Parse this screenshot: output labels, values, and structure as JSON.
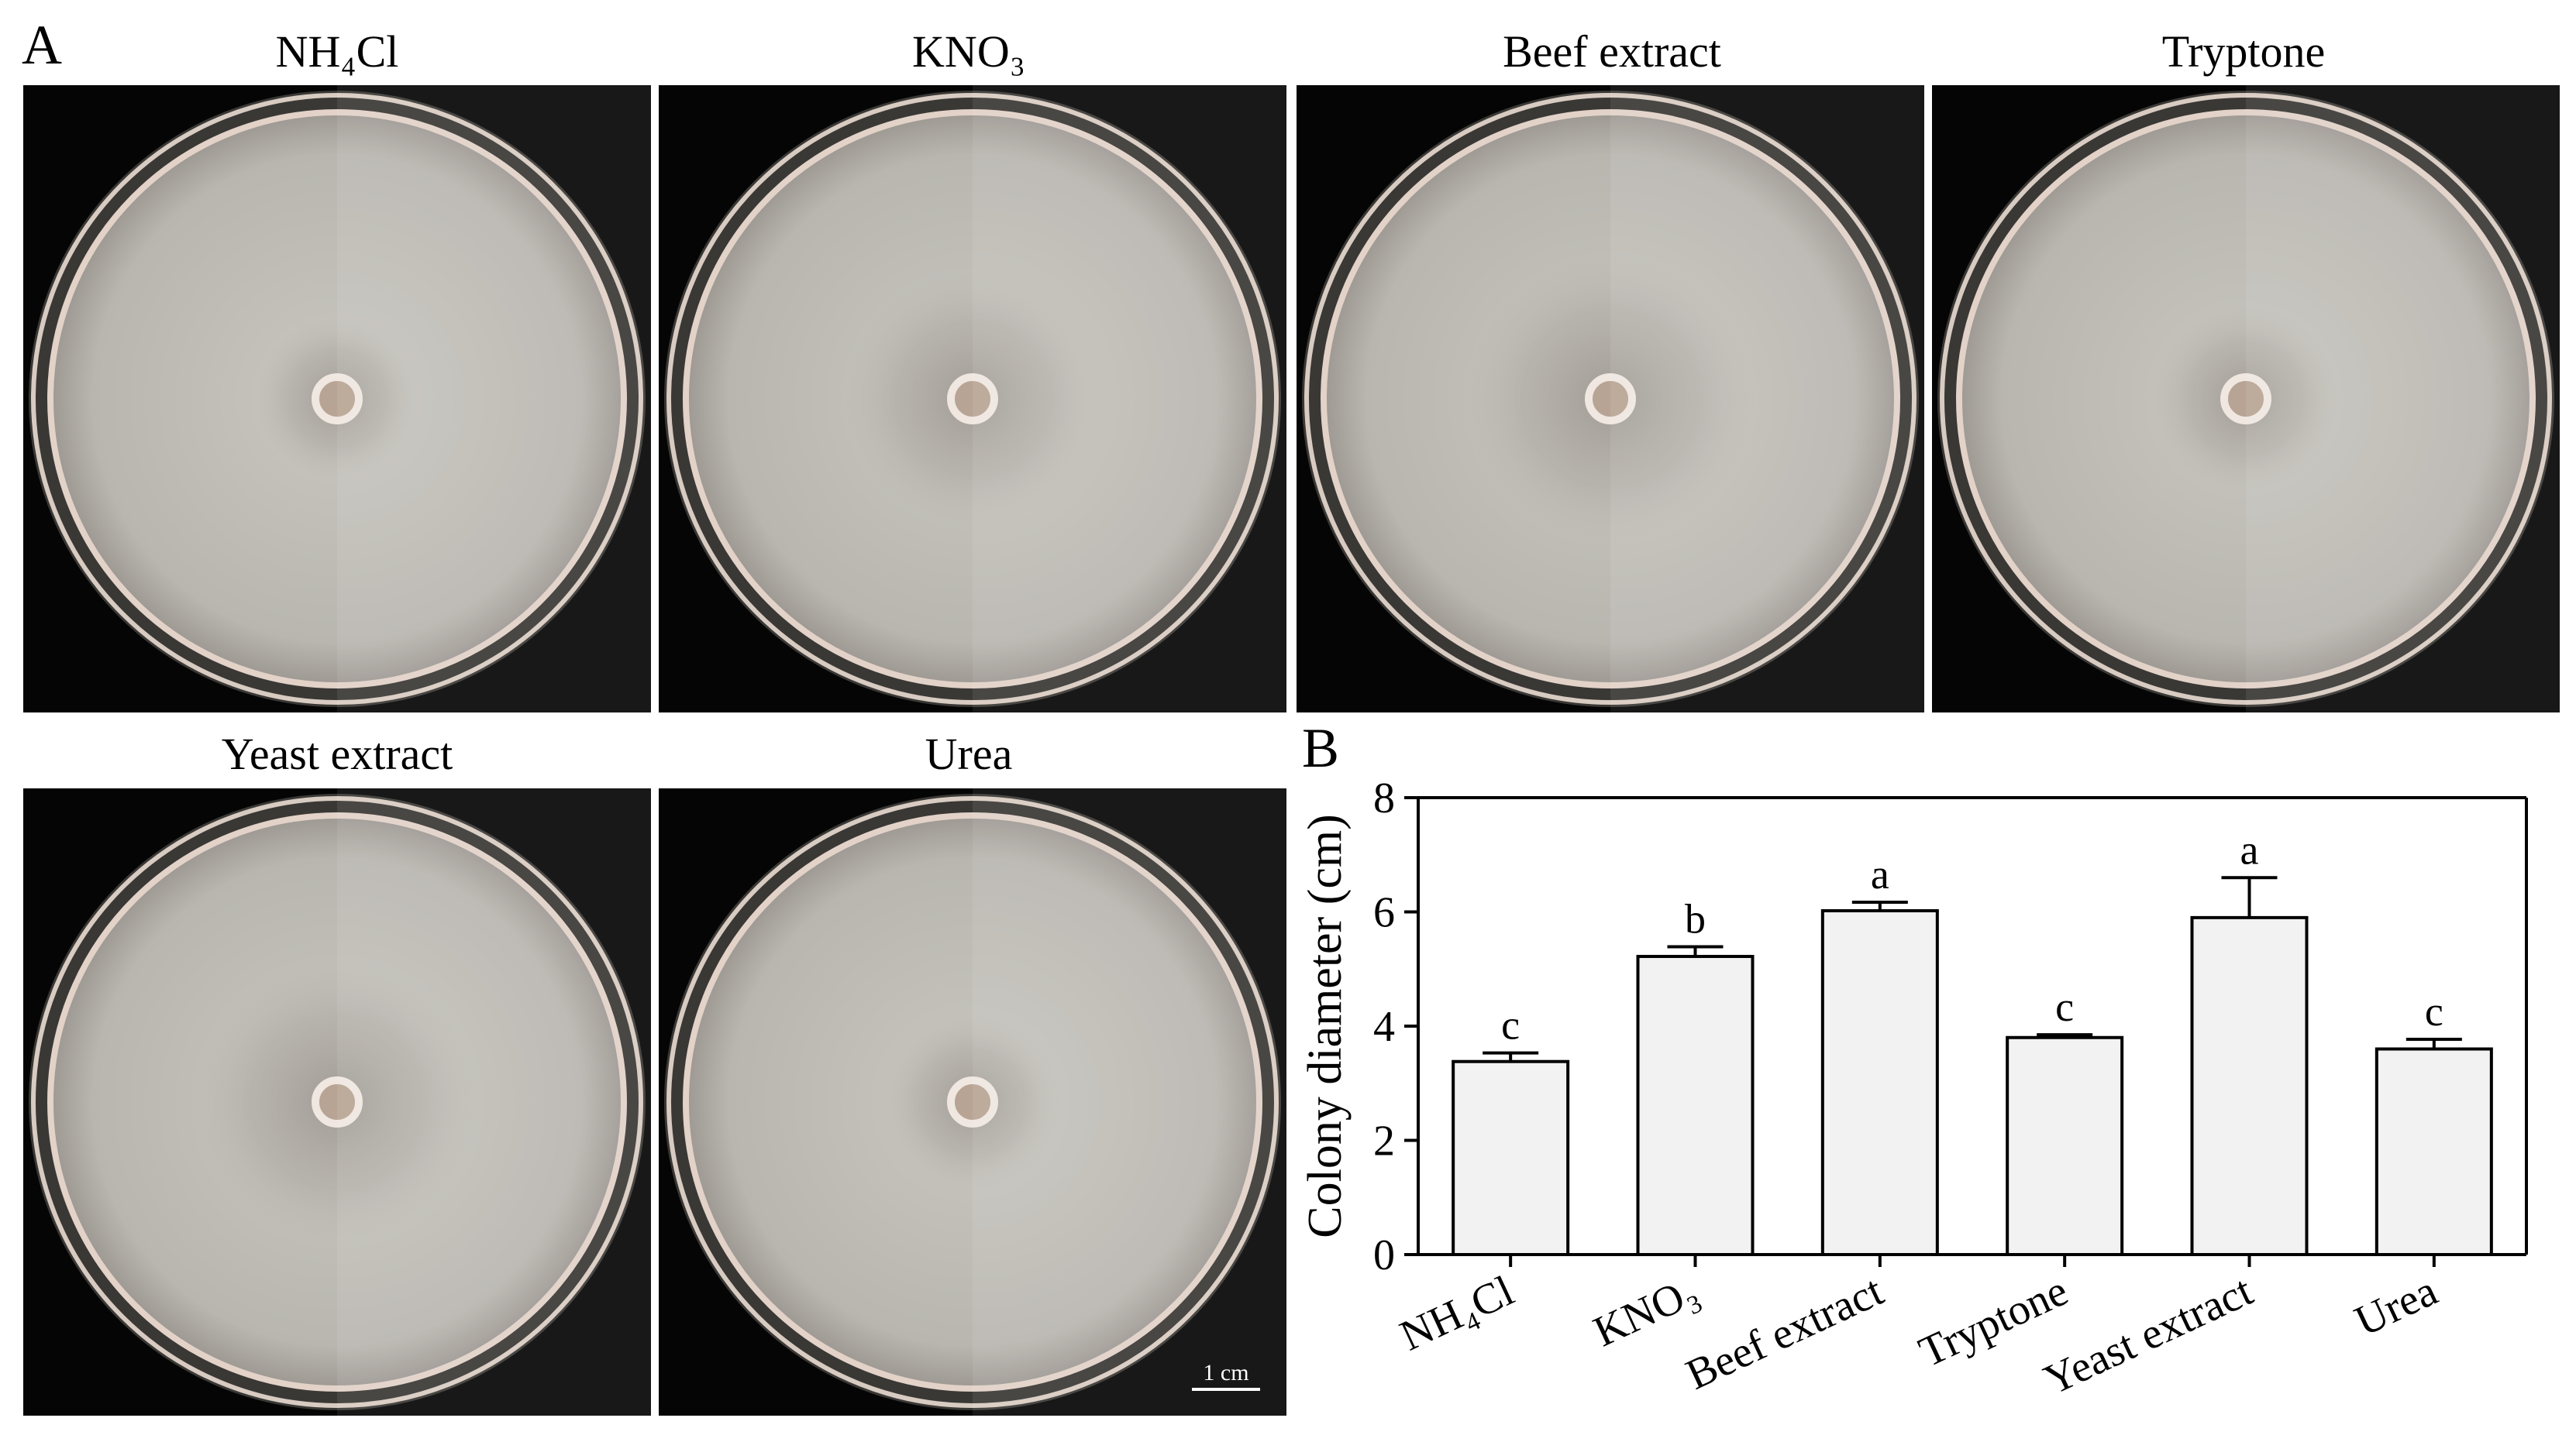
{
  "panels": {
    "a_letter": "A",
    "b_letter": "B"
  },
  "plates": [
    {
      "title": "NH₄Cl",
      "colony_fill": 0.28
    },
    {
      "title": "KNO₃",
      "colony_fill": 0.44
    },
    {
      "title": "Beef extract",
      "colony_fill": 0.5
    },
    {
      "title": "Tryptone",
      "colony_fill": 0.32
    },
    {
      "title": "Yeast extract",
      "colony_fill": 0.49
    },
    {
      "title": "Urea",
      "colony_fill": 0.3
    }
  ],
  "scale_bar": {
    "label": "1 cm"
  },
  "chart_data": {
    "type": "bar",
    "categories": [
      "NH₄Cl",
      "KNO₃",
      "Beef extract",
      "Tryptone",
      "Yeast extract",
      "Urea"
    ],
    "values": [
      3.38,
      5.22,
      6.02,
      3.8,
      5.9,
      3.6
    ],
    "errors": [
      0.15,
      0.17,
      0.15,
      0.05,
      0.7,
      0.17
    ],
    "significance": [
      "c",
      "b",
      "a",
      "c",
      "a",
      "c"
    ],
    "title": "",
    "xlabel": "",
    "ylabel": "Colony diameter (cm)",
    "ylim": [
      0,
      8
    ],
    "yticks": [
      0,
      2,
      4,
      6,
      8
    ],
    "bar_color": "#f2f2f2",
    "grid": false,
    "legend": "none"
  }
}
